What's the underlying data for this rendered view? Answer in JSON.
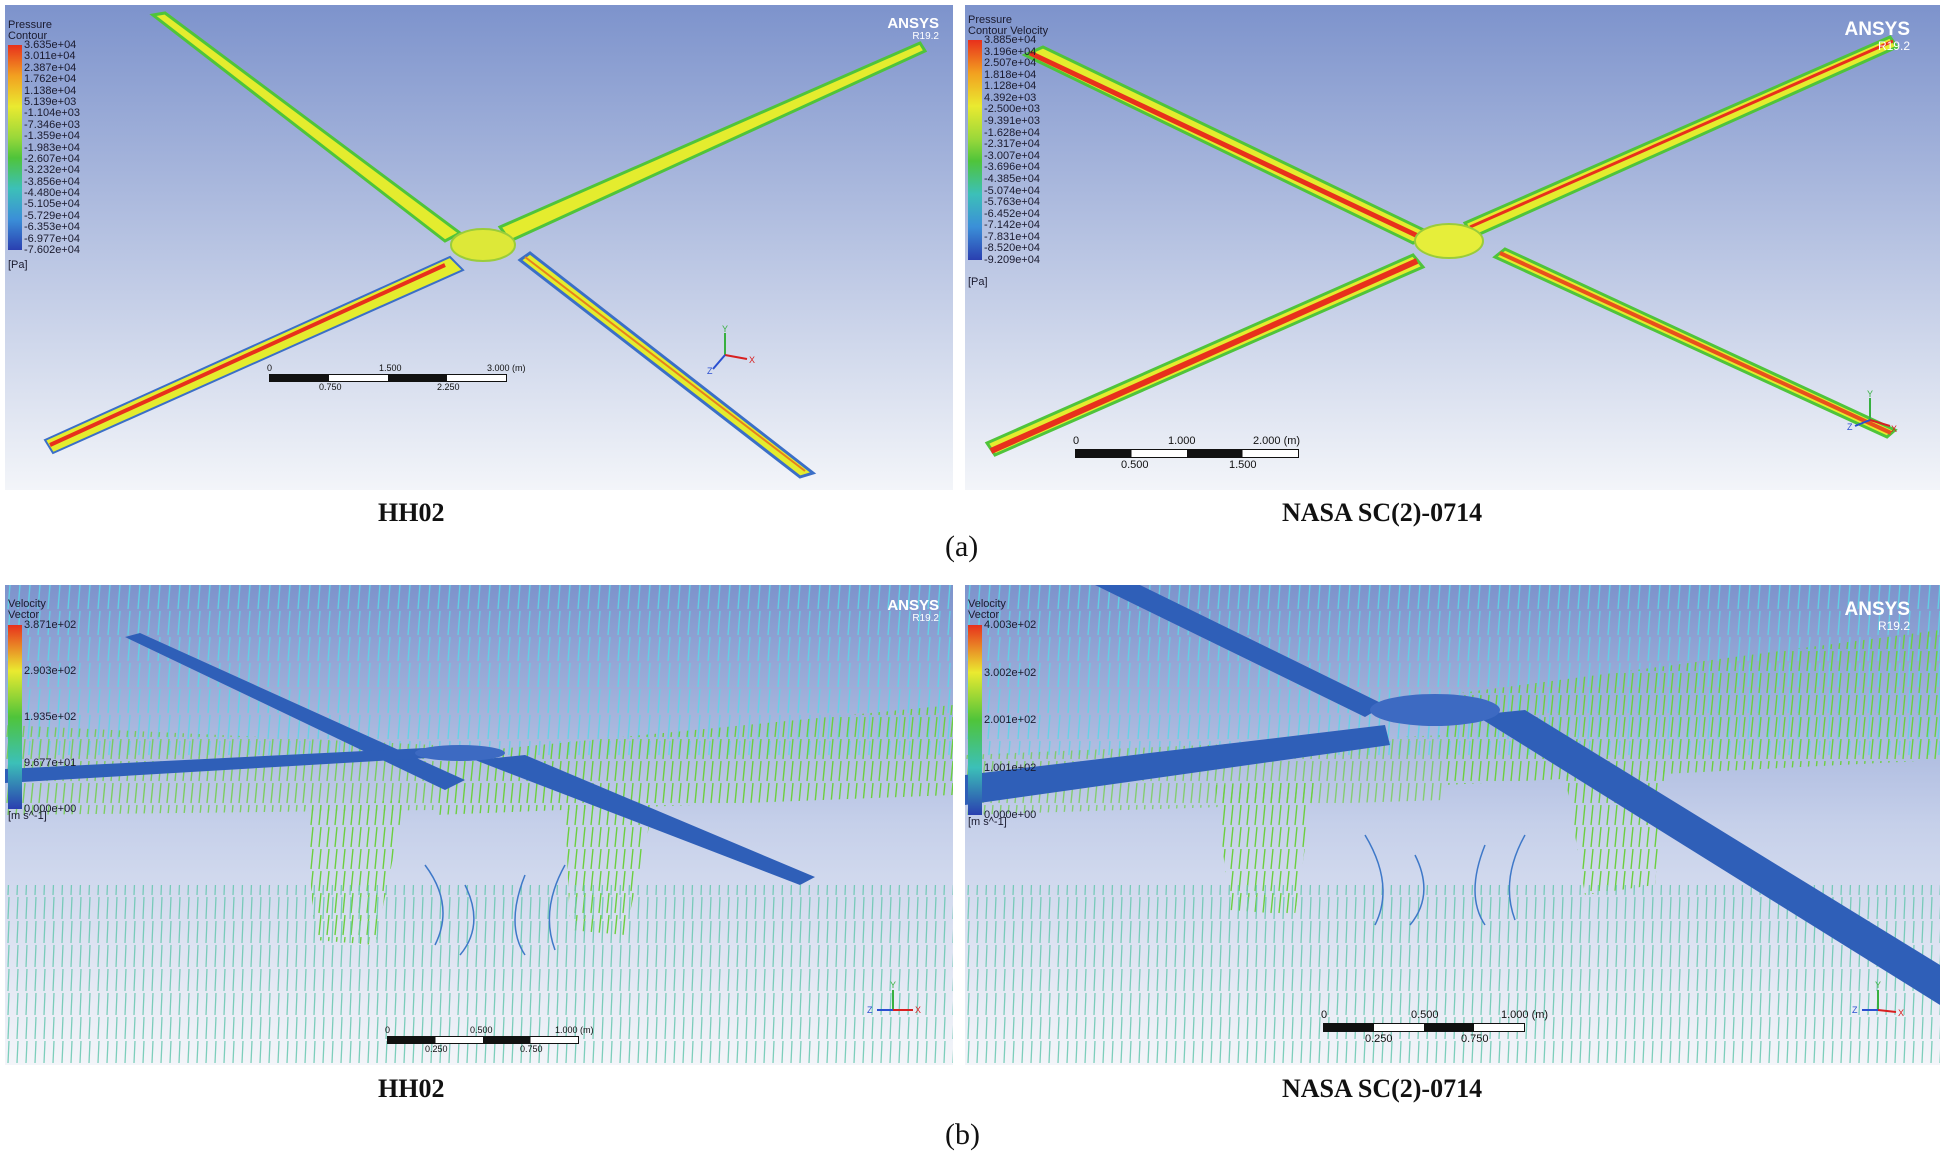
{
  "colors": {
    "bg_top": "#7d93cc",
    "bg_bottom": "#f2f4f8",
    "blade_yellow": "#e6ee2a",
    "blade_red": "#e8301c",
    "blade_green": "#4fc43a",
    "blade_blue": "#3b6fc7",
    "vec_cyan": "#5fd4e6",
    "vec_green": "#6ccf3f",
    "vec_blue": "#3e78c8"
  },
  "panel_a_left": {
    "legend_title_1": "Pressure",
    "legend_title_2": "Contour",
    "legend_values": [
      "3.635e+04",
      "3.011e+04",
      "2.387e+04",
      "1.762e+04",
      "1.138e+04",
      "5.139e+03",
      "-1.104e+03",
      "-7.346e+03",
      "-1.359e+04",
      "-1.983e+04",
      "-2.607e+04",
      "-3.232e+04",
      "-3.856e+04",
      "-4.480e+04",
      "-5.105e+04",
      "-5.729e+04",
      "-6.353e+04",
      "-6.977e+04",
      "-7.602e+04"
    ],
    "unit": "[Pa]",
    "logo": "ANSYS",
    "version": "R19.2",
    "scale_top": [
      "0",
      "1.500",
      "3.000 (m)"
    ],
    "scale_bottom": [
      "0.750",
      "2.250"
    ]
  },
  "panel_a_right": {
    "legend_title_1": "Pressure",
    "legend_title_2": "Contour Velocity",
    "legend_values": [
      "3.885e+04",
      "3.196e+04",
      "2.507e+04",
      "1.818e+04",
      "1.128e+04",
      "4.392e+03",
      "-2.500e+03",
      "-9.391e+03",
      "-1.628e+04",
      "-2.317e+04",
      "-3.007e+04",
      "-3.696e+04",
      "-4.385e+04",
      "-5.074e+04",
      "-5.763e+04",
      "-6.452e+04",
      "-7.142e+04",
      "-7.831e+04",
      "-8.520e+04",
      "-9.209e+04"
    ],
    "unit": "[Pa]",
    "logo": "ANSYS",
    "version": "R19.2",
    "scale_top": [
      "0",
      "1.000",
      "2.000 (m)"
    ],
    "scale_bottom": [
      "0.500",
      "1.500"
    ]
  },
  "panel_b_left": {
    "legend_title_1": "Velocity",
    "legend_title_2": "Vector",
    "legend_values": [
      "3.871e+02",
      "2.903e+02",
      "1.935e+02",
      "9.677e+01",
      "0.000e+00"
    ],
    "unit": "[m s^-1]",
    "logo": "ANSYS",
    "version": "R19.2",
    "scale_top": [
      "0",
      "0.500",
      "1.000 (m)"
    ],
    "scale_bottom": [
      "0.250",
      "0.750"
    ]
  },
  "panel_b_right": {
    "legend_title_1": "Velocity",
    "legend_title_2": "Vector",
    "legend_values": [
      "4.003e+02",
      "3.002e+02",
      "2.001e+02",
      "1.001e+02",
      "0.000e+00"
    ],
    "unit": "[m s^-1]",
    "logo": "ANSYS",
    "version": "R19.2",
    "scale_top": [
      "0",
      "0.500",
      "1.000 (m)"
    ],
    "scale_bottom": [
      "0.250",
      "0.750"
    ]
  },
  "captions": {
    "a_left": "HH02",
    "a_right": "NASA SC(2)-0714",
    "a_label": "(a)",
    "b_left": "HH02",
    "b_right": "NASA SC(2)-0714",
    "b_label": "(b)"
  }
}
